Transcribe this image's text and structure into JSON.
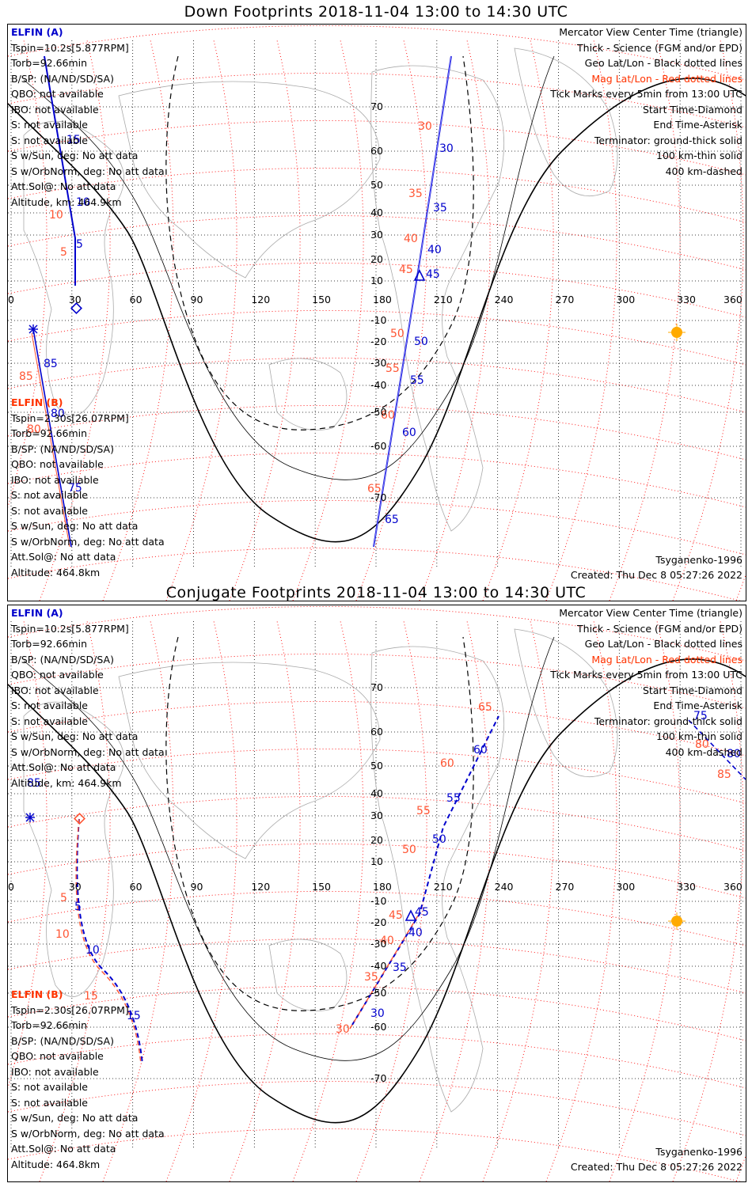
{
  "top": {
    "title": "Down Footprints 2018-11-04 13:00 to 14:30 UTC",
    "elfin_a": {
      "name": "ELFIN (A)",
      "lines": [
        "Tspin=10.2s[5.877RPM]",
        "Torb=92.66min",
        "B/SP: (NA/ND/SD/SA)",
        "QBO: not available",
        "IBO: not available",
        "S: not available",
        "S: not available",
        "S w/Sun, deg: No att data",
        "S w/OrbNorm, deg: No att data",
        "Att.Sol@: No att data",
        "Altitude, km: 464.9km"
      ]
    },
    "elfin_b": {
      "name": "ELFIN (B)",
      "lines": [
        "Tspin=2.30s[26.07RPM]",
        "Torb=92.66min",
        "B/SP: (NA/ND/SD/SA)",
        "QBO: not available",
        "IBO: not available",
        "S: not available",
        "S: not available",
        "S w/Sun, deg: No att data",
        "S w/OrbNorm, deg: No att data",
        "Att.Sol@: No att data",
        "Altitude: 464.8km"
      ]
    },
    "legend": [
      "Mercator View Center Time (triangle)",
      "Thick - Science (FGM and/or EPD)",
      "Geo Lat/Lon - Black dotted lines",
      "Mag Lat/Lon - Red dotted lines",
      "Tick Marks every 5min from 13:00 UTC",
      "Start Time-Diamond",
      "End Time-Asterisk",
      "Terminator: ground-thick solid",
      "100 km-thin solid",
      "400 km-dashed"
    ],
    "model": "Tsyganenko-1996",
    "created": "Created: Thu Dec  8 05:27:26 2022",
    "lon_labels": [
      "0",
      "30",
      "60",
      "90",
      "120",
      "150",
      "180",
      "210",
      "240",
      "270",
      "300",
      "330",
      "360"
    ],
    "lat_labels": [
      "70",
      "60",
      "50",
      "40",
      "30",
      "20",
      "10",
      "-10",
      "-20",
      "-30",
      "-40",
      "-50",
      "-60",
      "-70"
    ],
    "a_ticks": [
      "15",
      "10",
      "5",
      "30",
      "35",
      "40",
      "45",
      "50",
      "55",
      "60",
      "65"
    ],
    "b_ticks": [
      "10",
      "5",
      "30",
      "35",
      "40",
      "45",
      "50",
      "55",
      "60",
      "65",
      "85",
      "80",
      "75"
    ]
  },
  "bottom": {
    "title": "Conjugate Footprints 2018-11-04 13:00 to 14:30 UTC",
    "elfin_a": {
      "name": "ELFIN (A)",
      "lines": [
        "Tspin=10.2s[5.877RPM]",
        "Torb=92.66min",
        "B/SP: (NA/ND/SD/SA)",
        "QBO: not available",
        "IBO: not available",
        "S: not available",
        "S: not available",
        "S w/Sun, deg: No att data",
        "S w/OrbNorm, deg: No att data",
        "Att.Sol@: No att data",
        "Altitude, km: 464.9km"
      ]
    },
    "elfin_b": {
      "name": "ELFIN (B)",
      "lines": [
        "Tspin=2.30s[26.07RPM]",
        "Torb=92.66min",
        "B/SP: (NA/ND/SD/SA)",
        "QBO: not available",
        "IBO: not available",
        "S: not available",
        "S: not available",
        "S w/Sun, deg: No att data",
        "S w/OrbNorm, deg: No att data",
        "Att.Sol@: No att data",
        "Altitude: 464.8km"
      ]
    },
    "legend": [
      "Mercator View Center Time (triangle)",
      "Thick - Science (FGM and/or EPD)",
      "Geo Lat/Lon - Black dotted lines",
      "Mag Lat/Lon - Red dotted lines",
      "Tick Marks every 5min from 13:00 UTC",
      "Start Time-Diamond",
      "End Time-Asterisk",
      "Terminator: ground-thick solid",
      "100 km-thin solid",
      "400 km-dashed"
    ],
    "model": "Tsyganenko-1996",
    "created": "Created: Thu Dec  8 05:27:26 2022",
    "lon_labels": [
      "0",
      "30",
      "60",
      "90",
      "120",
      "150",
      "180",
      "210",
      "240",
      "270",
      "300",
      "330",
      "360"
    ],
    "lat_labels": [
      "70",
      "60",
      "50",
      "40",
      "30",
      "20",
      "10",
      "-10",
      "-20",
      "-30",
      "-40",
      "-50",
      "-60",
      "-70"
    ],
    "a_ticks": [
      "5",
      "10",
      "35",
      "40",
      "45",
      "50",
      "55",
      "60",
      "65"
    ],
    "b_ticks": [
      "5",
      "10",
      "15",
      "30",
      "35",
      "40",
      "45",
      "50",
      "55",
      "60",
      "65",
      "85",
      "80",
      "75"
    ]
  },
  "colors": {
    "elfin_a": "#0000cc",
    "elfin_b": "#ff5533",
    "mag_grid": "#ff0000",
    "geo_grid": "#000000",
    "sun": "#ffaa00"
  }
}
